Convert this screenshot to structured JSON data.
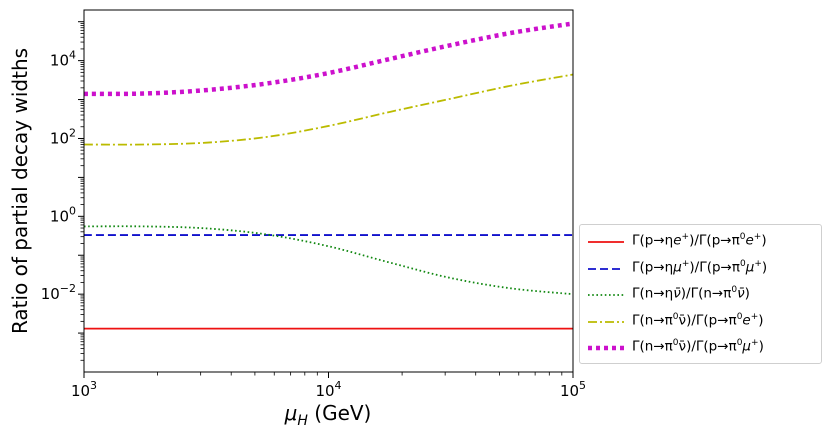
{
  "chart_data": {
    "type": "line",
    "title": "",
    "xlabel": "μ_H (GeV)",
    "ylabel": "Ratio of partial decay widths",
    "x_scale": "log",
    "y_scale": "log",
    "xlim": [
      1000,
      100000
    ],
    "ylim": [
      0.0001,
      200000
    ],
    "x_ticks": [
      {
        "value": 1000,
        "base": "10",
        "exp": "3"
      },
      {
        "value": 10000,
        "base": "10",
        "exp": "4"
      },
      {
        "value": 100000,
        "base": "10",
        "exp": "5"
      }
    ],
    "y_ticks": [
      {
        "value": 0.01,
        "base": "10",
        "exp": "−2"
      },
      {
        "value": 1,
        "base": "10",
        "exp": "0"
      },
      {
        "value": 100,
        "base": "10",
        "exp": "2"
      },
      {
        "value": 10000,
        "base": "10",
        "exp": "4"
      }
    ],
    "x": [
      1000,
      1778,
      3162,
      5623,
      10000,
      17783,
      31623,
      56234,
      100000
    ],
    "series": [
      {
        "name": "Γ(p→ηe⁺)/Γ(p→π⁰e⁺)",
        "color": "#ee1111",
        "style": "solid",
        "values": [
          0.0013,
          0.0013,
          0.0013,
          0.0013,
          0.0013,
          0.0013,
          0.0013,
          0.0013,
          0.0013
        ]
      },
      {
        "name": "Γ(p→ημ⁺)/Γ(p→π⁰μ⁺)",
        "color": "#1111cc",
        "style": "dashed",
        "values": [
          0.33,
          0.33,
          0.33,
          0.33,
          0.33,
          0.33,
          0.33,
          0.33,
          0.33
        ]
      },
      {
        "name": "Γ(n→ην̄)/Γ(n→π⁰ν̄)",
        "color": "#118811",
        "style": "dotted",
        "values": [
          0.55,
          0.55,
          0.49,
          0.34,
          0.17,
          0.065,
          0.026,
          0.014,
          0.01
        ]
      },
      {
        "name": "Γ(n→π⁰ν̄)/Γ(p→π⁰e⁺)",
        "color": "#bbbb00",
        "style": "dashdot",
        "values": [
          70,
          70,
          78,
          110,
          210,
          480,
          1050,
          2300,
          4400
        ]
      },
      {
        "name": "Γ(n→π⁰ν̄)/Γ(p→π⁰μ⁺)",
        "color": "#cc11cc",
        "style": "thickdotted",
        "values": [
          1400,
          1430,
          1750,
          2600,
          4800,
          11000,
          25000,
          52000,
          90000
        ]
      }
    ],
    "legend": {
      "placement": "outside-right",
      "entries": [
        {
          "prefix": "Γ(p→η",
          "sym": "e",
          "sup": "+",
          "mid": ")/Γ(p→π",
          "sup0": "0",
          "sym2": "e",
          "sup2": "+",
          "end": ")"
        },
        {
          "prefix": "Γ(p→η",
          "sym": "μ",
          "sup": "+",
          "mid": ")/Γ(p→π",
          "sup0": "0",
          "sym2": "μ",
          "sup2": "+",
          "end": ")"
        },
        {
          "prefix": "Γ(n→η",
          "sym": "ν̄",
          "sup": "",
          "mid": ")/Γ(n→π",
          "sup0": "0",
          "sym2": "ν̄",
          "sup2": "",
          "end": ")"
        },
        {
          "prefix": "Γ(n→π",
          "sym": "",
          "sup": "0",
          "mid": "ν̄)/Γ(p→π",
          "sup0": "0",
          "sym2": "e",
          "sup2": "+",
          "end": ")"
        },
        {
          "prefix": "Γ(n→π",
          "sym": "",
          "sup": "0",
          "mid": "ν̄)/Γ(p→π",
          "sup0": "0",
          "sym2": "μ",
          "sup2": "+",
          "end": ")"
        }
      ]
    }
  }
}
